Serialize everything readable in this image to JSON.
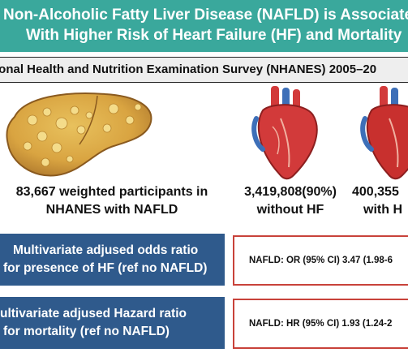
{
  "header": {
    "title_line1": "Non-Alcoholic Fatty Liver Disease (NAFLD) is Associated",
    "title_line2": "With Higher Risk of Heart Failure (HF) and Mortality"
  },
  "survey": {
    "label": "ional Health and Nutrition Examination Survey (NHANES) 2005–20"
  },
  "participants": {
    "total_line1": "83,667 weighted participants in",
    "total_line2": "NHANES with NAFLD",
    "without_hf_line1": "3,419,808(90%)",
    "without_hf_line2": "without HF",
    "with_hf_line1": "400,355",
    "with_hf_line2": "with H"
  },
  "odds_ratio": {
    "label_line1": "Multivariate adjused odds ratio",
    "label_line2": "for presence of HF (ref no NAFLD)",
    "result": "NAFLD: OR (95% CI) 3.47 (1.98-6"
  },
  "hazard_ratio": {
    "label_line1": "ultivariate adjused Hazard ratio",
    "label_line2": "for mortality (ref no NAFLD)",
    "result": "NAFLD: HR (95% CI) 1.93 (1.24-2"
  },
  "colors": {
    "banner": "#3aa89c",
    "survey_bar": "#eeeeee",
    "left_boxes": "#2f5a8c",
    "result_border": "#c8423a",
    "liver": "#d9a441",
    "heart": "#d23a3a"
  },
  "icons": [
    "fatty-liver-icon",
    "heart-icon",
    "heart-icon"
  ]
}
